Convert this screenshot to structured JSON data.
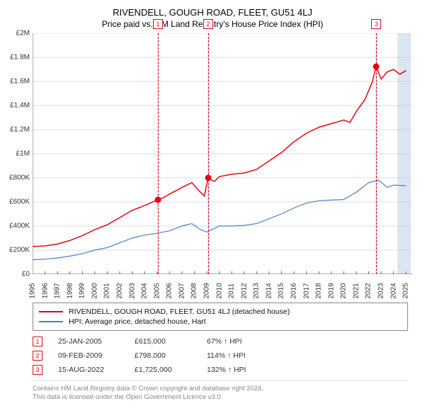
{
  "title": "RIVENDELL, GOUGH ROAD, FLEET, GU51 4LJ",
  "subtitle": "Price paid vs. HM Land Registry's House Price Index (HPI)",
  "chart": {
    "type": "line",
    "background_color": "#ffffff",
    "band_color": "#dce6f2",
    "grid_color": "#bbbbbb",
    "border_color": "#666666",
    "ylim": [
      0,
      2000000
    ],
    "ytick_step": 200000,
    "yticks": [
      "£0",
      "£200K",
      "£400K",
      "£600K",
      "£800K",
      "£1M",
      "£1.2M",
      "£1.4M",
      "£1.6M",
      "£1.8M",
      "£2M"
    ],
    "ylabel_fontsize": 10,
    "xlim": [
      1995,
      2025.5
    ],
    "xticks": [
      1995,
      1996,
      1997,
      1998,
      1999,
      2000,
      2001,
      2002,
      2003,
      2004,
      2005,
      2006,
      2007,
      2008,
      2009,
      2010,
      2011,
      2012,
      2013,
      2014,
      2015,
      2016,
      2017,
      2018,
      2019,
      2020,
      2021,
      2022,
      2023,
      2024,
      2025
    ],
    "xlabel_fontsize": 10,
    "series": [
      {
        "name": "property",
        "label": "RIVENDELL, GOUGH ROAD, FLEET, GU51 4LJ (detached house)",
        "color": "#e30613",
        "line_width": 1.5,
        "data": [
          [
            1995,
            230000
          ],
          [
            1996,
            235000
          ],
          [
            1997,
            250000
          ],
          [
            1998,
            280000
          ],
          [
            1999,
            320000
          ],
          [
            2000,
            370000
          ],
          [
            2001,
            410000
          ],
          [
            2002,
            470000
          ],
          [
            2003,
            530000
          ],
          [
            2004,
            570000
          ],
          [
            2005,
            615000
          ],
          [
            2005.5,
            635000
          ],
          [
            2006,
            665000
          ],
          [
            2007,
            720000
          ],
          [
            2007.8,
            760000
          ],
          [
            2008.3,
            700000
          ],
          [
            2008.8,
            650000
          ],
          [
            2009.1,
            798000
          ],
          [
            2009.6,
            770000
          ],
          [
            2010,
            810000
          ],
          [
            2011,
            830000
          ],
          [
            2012,
            840000
          ],
          [
            2013,
            870000
          ],
          [
            2014,
            940000
          ],
          [
            2015,
            1010000
          ],
          [
            2016,
            1100000
          ],
          [
            2017,
            1170000
          ],
          [
            2018,
            1220000
          ],
          [
            2019,
            1250000
          ],
          [
            2020,
            1280000
          ],
          [
            2020.5,
            1260000
          ],
          [
            2021,
            1350000
          ],
          [
            2021.7,
            1450000
          ],
          [
            2022.3,
            1600000
          ],
          [
            2022.6,
            1725000
          ],
          [
            2023,
            1620000
          ],
          [
            2023.5,
            1680000
          ],
          [
            2024,
            1700000
          ],
          [
            2024.5,
            1660000
          ],
          [
            2025,
            1690000
          ]
        ]
      },
      {
        "name": "hpi",
        "label": "HPI: Average price, detached house, Hart",
        "color": "#4a7fbf",
        "line_width": 1.2,
        "data": [
          [
            1995,
            120000
          ],
          [
            1996,
            125000
          ],
          [
            1997,
            135000
          ],
          [
            1998,
            150000
          ],
          [
            1999,
            170000
          ],
          [
            2000,
            200000
          ],
          [
            2001,
            220000
          ],
          [
            2002,
            260000
          ],
          [
            2003,
            300000
          ],
          [
            2004,
            325000
          ],
          [
            2005,
            340000
          ],
          [
            2006,
            360000
          ],
          [
            2007,
            400000
          ],
          [
            2007.8,
            420000
          ],
          [
            2008.5,
            370000
          ],
          [
            2009,
            350000
          ],
          [
            2009.5,
            375000
          ],
          [
            2010,
            400000
          ],
          [
            2011,
            400000
          ],
          [
            2012,
            405000
          ],
          [
            2013,
            420000
          ],
          [
            2014,
            460000
          ],
          [
            2015,
            500000
          ],
          [
            2016,
            550000
          ],
          [
            2017,
            590000
          ],
          [
            2018,
            610000
          ],
          [
            2019,
            615000
          ],
          [
            2020,
            620000
          ],
          [
            2021,
            680000
          ],
          [
            2022,
            760000
          ],
          [
            2022.8,
            780000
          ],
          [
            2023.5,
            720000
          ],
          [
            2024,
            740000
          ],
          [
            2025,
            735000
          ]
        ]
      }
    ],
    "bands": [
      {
        "from": 2005.0,
        "to": 2005.15
      },
      {
        "from": 2009.05,
        "to": 2009.2
      },
      {
        "from": 2022.55,
        "to": 2022.7
      },
      {
        "from": 2024.3,
        "to": 2025.4
      }
    ],
    "markers": [
      {
        "n": "1",
        "x": 2005.07,
        "color": "#e30613",
        "dot_y": 615000
      },
      {
        "n": "2",
        "x": 2009.11,
        "color": "#e30613",
        "dot_y": 798000
      },
      {
        "n": "3",
        "x": 2022.62,
        "color": "#e30613",
        "dot_y": 1725000
      }
    ]
  },
  "legend": {
    "items": [
      {
        "color": "#e30613",
        "label_ref": "chart.series.0.label"
      },
      {
        "color": "#4a7fbf",
        "label_ref": "chart.series.1.label"
      }
    ]
  },
  "sales": [
    {
      "n": "1",
      "date": "25-JAN-2005",
      "price": "£615,000",
      "pct": "67% ↑ HPI",
      "color": "#e30613"
    },
    {
      "n": "2",
      "date": "09-FEB-2009",
      "price": "£798,000",
      "pct": "114% ↑ HPI",
      "color": "#e30613"
    },
    {
      "n": "3",
      "date": "15-AUG-2022",
      "price": "£1,725,000",
      "pct": "132% ↑ HPI",
      "color": "#e30613"
    }
  ],
  "footnote_line1": "Contains HM Land Registry data © Crown copyright and database right 2024.",
  "footnote_line2": "This data is licensed under the Open Government Licence v3.0."
}
